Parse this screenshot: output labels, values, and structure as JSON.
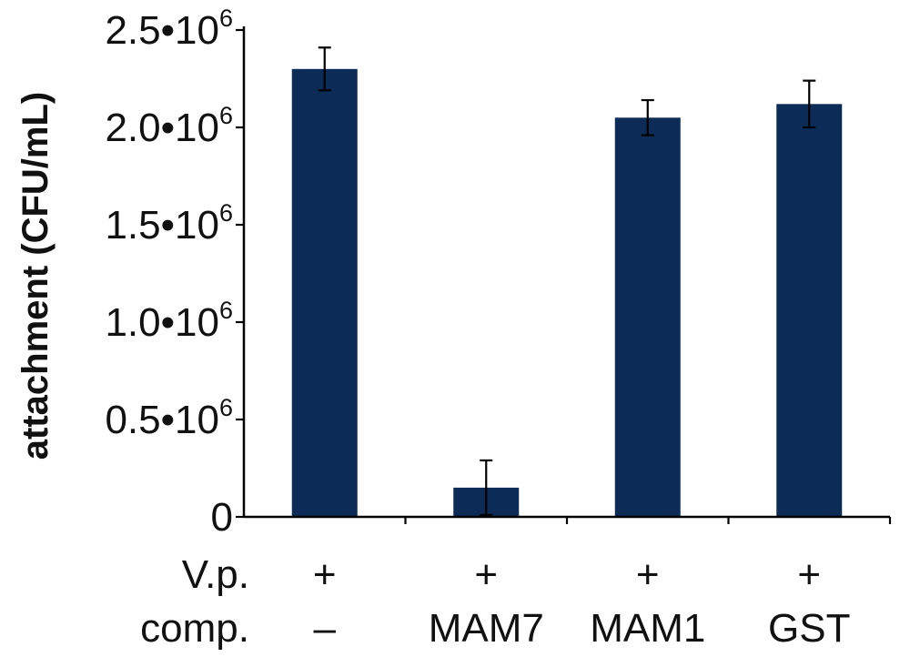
{
  "chart_data": {
    "type": "bar",
    "title": "",
    "xlabel": "",
    "ylabel": "attachment (CFU/mL)",
    "ylim": [
      0,
      2500000
    ],
    "y_ticks": [
      {
        "value": 0,
        "base": "0",
        "exp": ""
      },
      {
        "value": 500000,
        "base": "0.5•10",
        "exp": "6"
      },
      {
        "value": 1000000,
        "base": "1.0•10",
        "exp": "6"
      },
      {
        "value": 1500000,
        "base": "1.5•10",
        "exp": "6"
      },
      {
        "value": 2000000,
        "base": "2.0•10",
        "exp": "6"
      },
      {
        "value": 2500000,
        "base": "2.5•10",
        "exp": "6"
      }
    ],
    "row_labels": [
      "V.p.",
      "comp."
    ],
    "categories": [
      {
        "vp": "+",
        "comp": "–"
      },
      {
        "vp": "+",
        "comp": "MAM7"
      },
      {
        "vp": "+",
        "comp": "MAM1"
      },
      {
        "vp": "+",
        "comp": "GST"
      }
    ],
    "values": [
      2300000,
      150000,
      2050000,
      2120000
    ],
    "errors": [
      110000,
      140000,
      90000,
      120000
    ],
    "bar_color": "#0c2b56",
    "axis_color": "#000000"
  }
}
